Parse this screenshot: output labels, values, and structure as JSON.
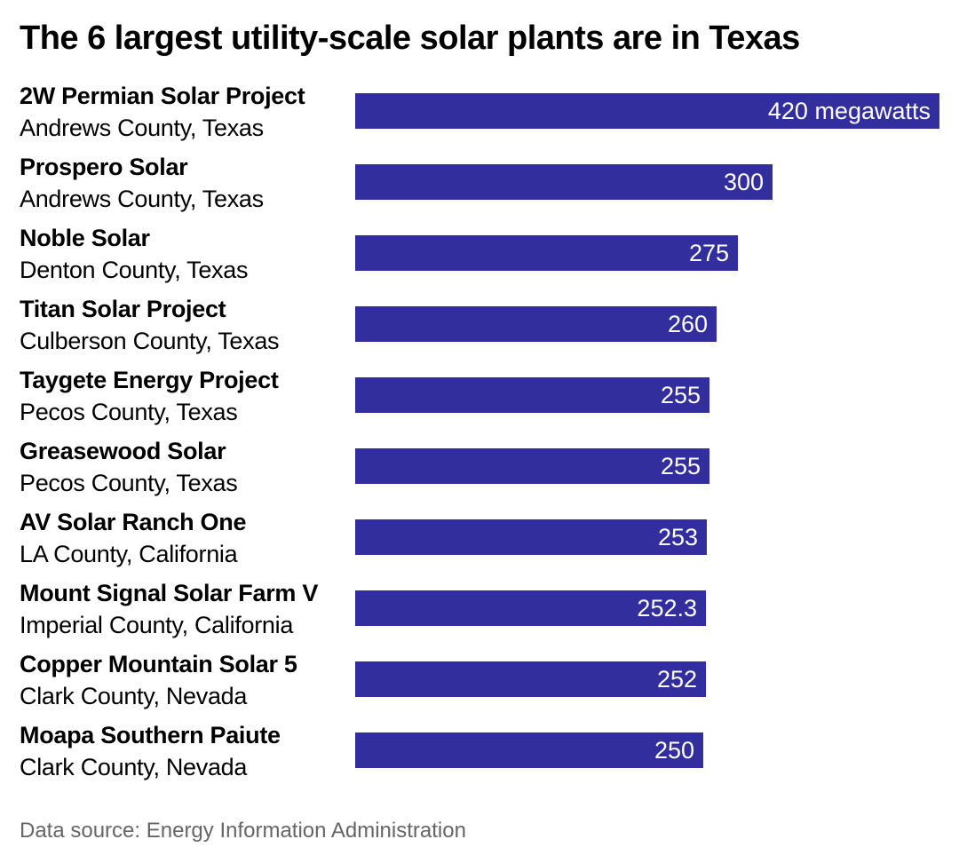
{
  "chart_data": {
    "type": "bar",
    "orientation": "horizontal",
    "title": "The 6 largest utility-scale solar plants are in Texas",
    "unit": "megawatts",
    "xlim": [
      0,
      420
    ],
    "bar_color": "#332e9e",
    "rows": [
      {
        "name": "2W Permian Solar Project",
        "location": "Andrews County, Texas",
        "value": 420,
        "label": "420 megawatts"
      },
      {
        "name": "Prospero Solar",
        "location": "Andrews County, Texas",
        "value": 300,
        "label": "300"
      },
      {
        "name": "Noble Solar",
        "location": "Denton County, Texas",
        "value": 275,
        "label": "275"
      },
      {
        "name": "Titan Solar Project",
        "location": "Culberson County, Texas",
        "value": 260,
        "label": "260"
      },
      {
        "name": "Taygete Energy Project",
        "location": "Pecos County, Texas",
        "value": 255,
        "label": "255"
      },
      {
        "name": "Greasewood Solar",
        "location": "Pecos County, Texas",
        "value": 255,
        "label": "255"
      },
      {
        "name": "AV Solar Ranch One",
        "location": "LA County, California",
        "value": 253,
        "label": "253"
      },
      {
        "name": "Mount Signal Solar Farm V",
        "location": "Imperial County, California",
        "value": 252.3,
        "label": "252.3"
      },
      {
        "name": "Copper Mountain Solar 5",
        "location": "Clark County, Nevada",
        "value": 252,
        "label": "252"
      },
      {
        "name": "Moapa Southern Paiute",
        "location": "Clark County, Nevada",
        "value": 250,
        "label": "250"
      }
    ],
    "source": "Data source: Energy Information Administration"
  }
}
